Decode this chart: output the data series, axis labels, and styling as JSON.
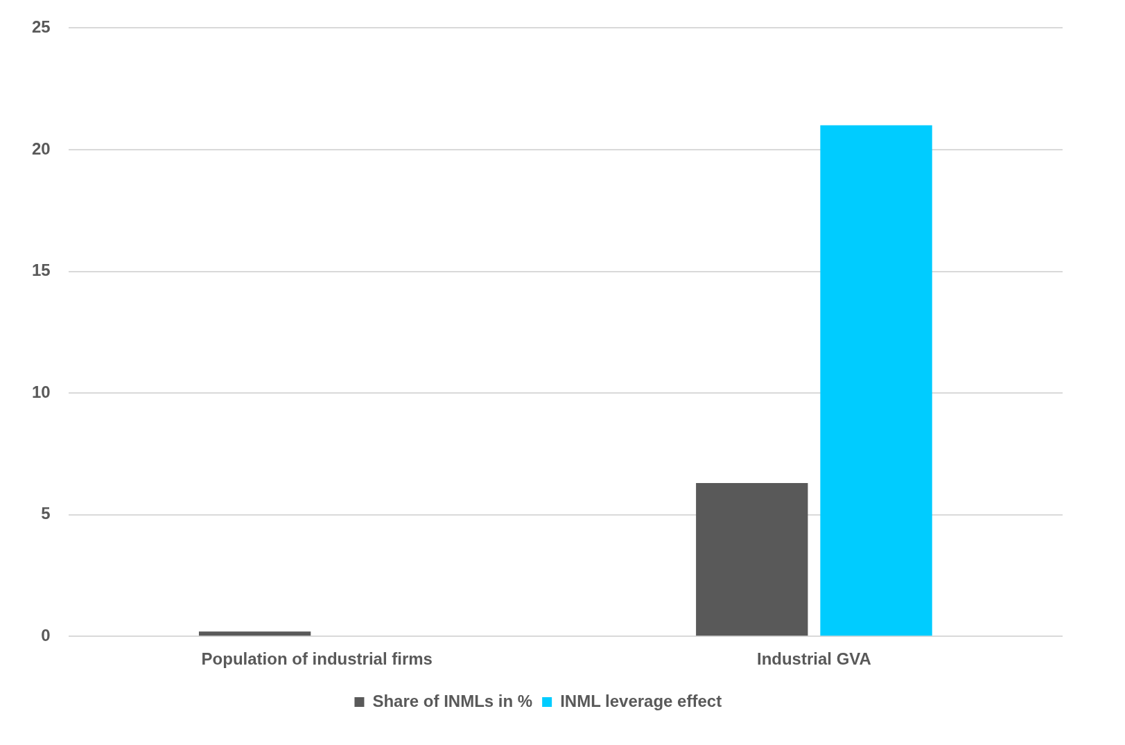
{
  "chart_data": {
    "type": "bar",
    "categories": [
      "Population of industrial firms",
      "Industrial GVA"
    ],
    "series": [
      {
        "name": "Share of INMLs in %",
        "color": "#595959",
        "values": [
          0.2,
          6.3
        ]
      },
      {
        "name": "INML leverage effect",
        "color": "#00ccff",
        "values": [
          null,
          21
        ]
      }
    ],
    "ylim": [
      0,
      25
    ],
    "yticks": [
      0,
      5,
      10,
      15,
      20,
      25
    ],
    "grid": "y",
    "legend": "bottom"
  }
}
